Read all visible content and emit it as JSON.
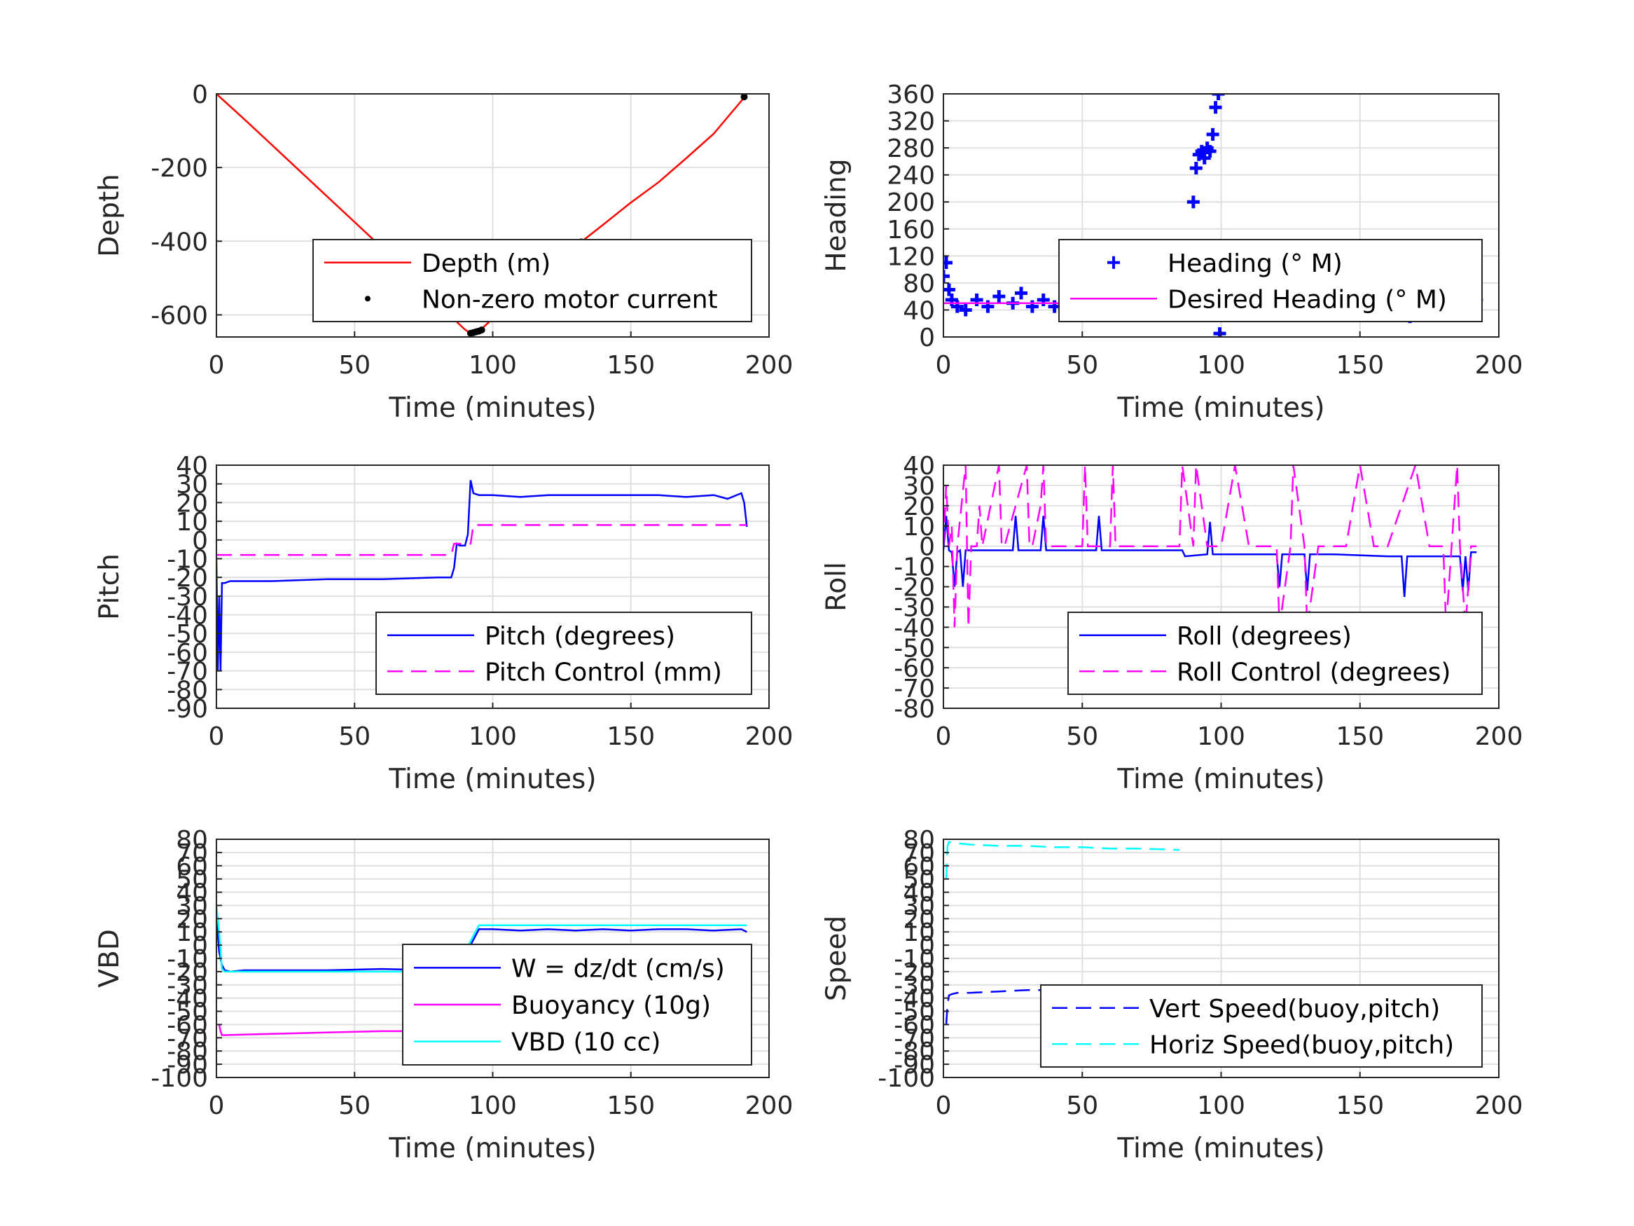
{
  "chart_data": [
    {
      "type": "line",
      "xlabel": "Time (minutes)",
      "ylabel": "Depth",
      "xlim": [
        0,
        200
      ],
      "ylim": [
        -660,
        0
      ],
      "xticks": [
        0,
        50,
        100,
        150,
        200
      ],
      "yticks": [
        0,
        -200,
        -400,
        -600
      ],
      "grid": true,
      "legend_placement": "bottom-right",
      "series": [
        {
          "name": "Depth (m)",
          "color": "#ff0000",
          "style": "solid",
          "x": [
            0,
            10,
            20,
            30,
            40,
            50,
            60,
            70,
            80,
            86,
            90,
            92,
            95,
            100,
            110,
            120,
            132,
            140,
            150,
            160,
            170,
            180,
            191
          ],
          "y": [
            0,
            -68,
            -138,
            -208,
            -278,
            -348,
            -418,
            -488,
            -558,
            -612,
            -640,
            -650,
            -645,
            -610,
            -543,
            -475,
            -402,
            -355,
            -295,
            -240,
            -175,
            -108,
            -10
          ]
        },
        {
          "name": "Non-zero motor current",
          "color": "#000000",
          "style": "dots",
          "x": [
            92,
            93,
            94,
            95,
            96,
            132,
            191
          ],
          "y": [
            -650,
            -648,
            -646,
            -644,
            -641,
            -402,
            -8
          ]
        }
      ]
    },
    {
      "type": "scatter",
      "xlabel": "Time (minutes)",
      "ylabel": "Heading",
      "xlim": [
        0,
        200
      ],
      "ylim": [
        0,
        360
      ],
      "xticks": [
        0,
        50,
        100,
        150,
        200
      ],
      "yticks": [
        0,
        40,
        80,
        120,
        160,
        200,
        240,
        280,
        320,
        360
      ],
      "grid": true,
      "legend_placement": "bottom-right",
      "series": [
        {
          "name": "Heading (° M)",
          "color": "#0000ff",
          "style": "plus",
          "x": [
            0,
            1,
            2,
            3,
            5,
            8,
            12,
            16,
            20,
            25,
            28,
            32,
            36,
            40,
            45,
            50,
            55,
            58,
            62,
            66,
            70,
            75,
            80,
            84,
            86,
            88,
            90,
            91,
            92,
            93,
            94,
            95,
            96,
            97,
            98,
            99,
            99.5,
            100,
            104,
            108,
            112,
            116,
            120,
            124,
            128,
            132,
            136,
            140,
            144,
            148,
            152,
            156,
            160,
            164,
            168,
            172,
            176,
            180,
            184,
            188,
            190,
            192
          ],
          "y": [
            90,
            110,
            70,
            55,
            45,
            40,
            55,
            45,
            60,
            50,
            65,
            45,
            55,
            45,
            60,
            50,
            70,
            50,
            40,
            55,
            75,
            50,
            55,
            40,
            60,
            120,
            200,
            250,
            270,
            275,
            265,
            280,
            275,
            300,
            340,
            360,
            5,
            50,
            40,
            55,
            50,
            65,
            45,
            60,
            50,
            55,
            40,
            60,
            45,
            65,
            50,
            55,
            45,
            60,
            30,
            55,
            45,
            60,
            50,
            40,
            95,
            55
          ]
        },
        {
          "name": "Desired Heading (° M)",
          "color": "#ff00ff",
          "style": "solid",
          "x": [
            0,
            192
          ],
          "y": [
            50,
            50
          ]
        }
      ]
    },
    {
      "type": "line",
      "xlabel": "Time (minutes)",
      "ylabel": "Pitch",
      "xlim": [
        0,
        200
      ],
      "ylim": [
        -90,
        40
      ],
      "xticks": [
        0,
        50,
        100,
        150,
        200
      ],
      "yticks": [
        40,
        30,
        20,
        10,
        0,
        -10,
        -20,
        -30,
        -40,
        -50,
        -60,
        -70,
        -80,
        -90
      ],
      "grid": true,
      "legend_placement": "bottom-right",
      "series": [
        {
          "name": "Pitch (degrees)",
          "color": "#0000ff",
          "style": "solid",
          "x": [
            0,
            0.5,
            1,
            1.5,
            2,
            3,
            5,
            20,
            40,
            60,
            80,
            85,
            86,
            87,
            88,
            90,
            91,
            92,
            93,
            95,
            100,
            110,
            120,
            130,
            140,
            150,
            160,
            170,
            180,
            185,
            190,
            191,
            192
          ],
          "y": [
            -10,
            -70,
            -30,
            -70,
            -23,
            -23,
            -22,
            -22,
            -21,
            -21,
            -20,
            -20,
            -15,
            -2,
            -3,
            -3,
            3,
            32,
            25,
            24,
            24,
            23,
            24,
            24,
            24,
            24,
            24,
            23,
            24,
            22,
            25,
            20,
            7
          ]
        },
        {
          "name": "Pitch Control (mm)",
          "color": "#ff00ff",
          "style": "dashed",
          "x": [
            0,
            85,
            86,
            92,
            93,
            192
          ],
          "y": [
            -8,
            -8,
            -2,
            -2,
            8,
            8
          ]
        }
      ]
    },
    {
      "type": "line",
      "xlabel": "Time (minutes)",
      "ylabel": "Roll",
      "xlim": [
        0,
        200
      ],
      "ylim": [
        -80,
        40
      ],
      "xticks": [
        0,
        50,
        100,
        150,
        200
      ],
      "yticks": [
        40,
        30,
        20,
        10,
        0,
        -10,
        -20,
        -30,
        -40,
        -50,
        -60,
        -70,
        -80
      ],
      "grid": true,
      "legend_placement": "bottom-right",
      "series": [
        {
          "name": "Roll (degrees)",
          "color": "#0000ff",
          "style": "solid",
          "x": [
            0,
            1,
            2,
            3,
            4,
            5,
            6,
            7,
            8,
            9,
            10,
            15,
            20,
            25,
            26,
            27,
            30,
            35,
            36,
            37,
            40,
            50,
            55,
            56,
            57,
            60,
            85,
            86,
            87,
            95,
            96,
            97,
            100,
            110,
            120,
            121,
            122,
            123,
            130,
            131,
            132,
            133,
            140,
            160,
            165,
            166,
            167,
            180,
            185,
            186,
            187,
            188,
            189,
            190,
            192
          ],
          "y": [
            -2,
            15,
            -2,
            -3,
            -20,
            -3,
            -2,
            -20,
            -2,
            -2,
            -2,
            -2,
            -2,
            -2,
            15,
            -2,
            -2,
            -2,
            15,
            -2,
            -2,
            -2,
            -2,
            15,
            -2,
            -2,
            -2,
            -2,
            -5,
            -4,
            12,
            -4,
            -4,
            -4,
            -4,
            -20,
            -4,
            -4,
            -4,
            -22,
            -4,
            -4,
            -4,
            -5,
            -5,
            -25,
            -5,
            -5,
            -5,
            -5,
            -22,
            -5,
            -22,
            -3,
            -3
          ]
        },
        {
          "name": "Roll Control (degrees)",
          "color": "#ff00ff",
          "style": "dashed",
          "x": [
            0,
            1,
            2,
            3,
            4,
            5,
            8,
            9,
            10,
            12,
            13,
            14,
            20,
            21,
            22,
            30,
            31,
            32,
            35,
            36,
            37,
            50,
            51,
            52,
            60,
            61,
            62,
            80,
            85,
            86,
            90,
            91,
            95,
            100,
            105,
            110,
            115,
            120,
            121,
            125,
            126,
            130,
            131,
            135,
            145,
            150,
            155,
            160,
            170,
            175,
            180,
            181,
            185,
            186,
            188,
            190,
            192
          ],
          "y": [
            0,
            30,
            0,
            10,
            -40,
            0,
            40,
            -40,
            0,
            0,
            20,
            0,
            40,
            0,
            0,
            40,
            0,
            0,
            20,
            40,
            0,
            0,
            40,
            0,
            0,
            40,
            0,
            0,
            0,
            40,
            0,
            40,
            0,
            0,
            40,
            0,
            0,
            0,
            -40,
            0,
            40,
            0,
            -40,
            0,
            0,
            40,
            0,
            0,
            40,
            0,
            0,
            -40,
            40,
            0,
            -40,
            0,
            0
          ]
        }
      ]
    },
    {
      "type": "line",
      "xlabel": "Time (minutes)",
      "ylabel": "VBD",
      "xlim": [
        0,
        200
      ],
      "ylim": [
        -100,
        80
      ],
      "xticks": [
        0,
        50,
        100,
        150,
        200
      ],
      "yticks": [
        80,
        70,
        60,
        50,
        40,
        30,
        20,
        10,
        0,
        -10,
        -20,
        -30,
        -40,
        -50,
        -60,
        -70,
        -80,
        -90,
        -100
      ],
      "grid": true,
      "legend_placement": "bottom-right",
      "series": [
        {
          "name": "W = dz/dt (cm/s)",
          "color": "#0000ff",
          "style": "solid",
          "x": [
            0,
            1,
            2,
            3,
            5,
            10,
            20,
            40,
            60,
            80,
            85,
            88,
            90,
            92,
            95,
            100,
            110,
            120,
            130,
            140,
            150,
            160,
            170,
            180,
            190,
            192
          ],
          "y": [
            20,
            -5,
            -15,
            -19,
            -20,
            -19,
            -19,
            -19,
            -18,
            -19,
            -19,
            -16,
            -10,
            0,
            12,
            12,
            11,
            12,
            11,
            12,
            11,
            12,
            12,
            11,
            12,
            10
          ]
        },
        {
          "name": "Buoyancy (10g)",
          "color": "#ff00ff",
          "style": "solid",
          "x": [
            1,
            1.5,
            2,
            20,
            40,
            60,
            85
          ],
          "y": [
            -60,
            -65,
            -68,
            -67,
            -66,
            -65,
            -65
          ]
        },
        {
          "name": "VBD (10 cc)",
          "color": "#00ffff",
          "style": "solid",
          "x": [
            0,
            1,
            2,
            3,
            85,
            86,
            90,
            95,
            192
          ],
          "y": [
            30,
            10,
            -18,
            -20,
            -20,
            -12,
            -5,
            15,
            15
          ]
        }
      ]
    },
    {
      "type": "line",
      "xlabel": "Time (minutes)",
      "ylabel": "Speed",
      "xlim": [
        0,
        200
      ],
      "ylim": [
        -100,
        80
      ],
      "xticks": [
        0,
        50,
        100,
        150,
        200
      ],
      "yticks": [
        80,
        70,
        60,
        50,
        40,
        30,
        20,
        10,
        0,
        -10,
        -20,
        -30,
        -40,
        -50,
        -60,
        -70,
        -80,
        -90,
        -100
      ],
      "grid": true,
      "legend_placement": "bottom-right",
      "series": [
        {
          "name": "Vert Speed(buoy,pitch)",
          "color": "#0000ff",
          "style": "dashed",
          "x": [
            1,
            1.5,
            2,
            3,
            5,
            10,
            20,
            30,
            40,
            50,
            60,
            70,
            85
          ],
          "y": [
            -60,
            -45,
            -38,
            -37,
            -36,
            -36,
            -35,
            -34,
            -34,
            -33,
            -33,
            -33,
            -32
          ]
        },
        {
          "name": "Horiz Speed(buoy,pitch)",
          "color": "#00ffff",
          "style": "dashed",
          "x": [
            1,
            1.5,
            2,
            5,
            10,
            20,
            30,
            40,
            50,
            60,
            70,
            85
          ],
          "y": [
            50,
            75,
            78,
            77,
            76,
            75,
            75,
            74,
            74,
            73,
            73,
            72
          ]
        }
      ]
    }
  ]
}
